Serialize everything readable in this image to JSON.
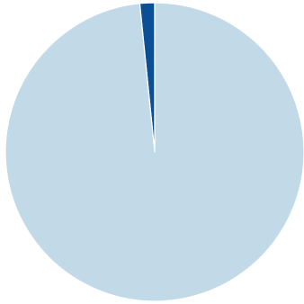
{
  "chart_data": {
    "type": "pie",
    "start_angle_deg": 0,
    "direction": "counterclockwise",
    "slices": [
      {
        "value": 1.6,
        "color": "#0d4f94"
      },
      {
        "value": 98.4,
        "color": "#c2d9e8"
      }
    ],
    "title": "",
    "legend": "none"
  }
}
